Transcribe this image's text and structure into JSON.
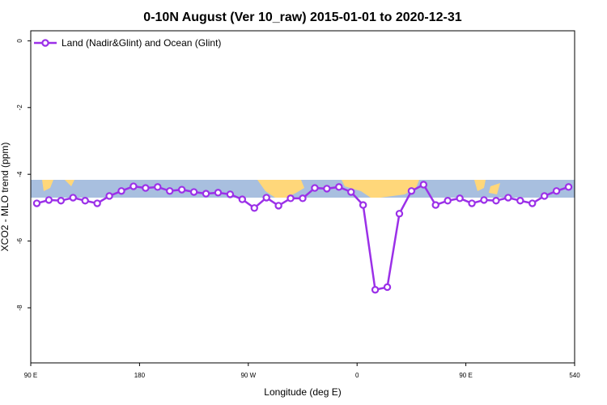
{
  "chart_data": {
    "type": "line",
    "title": "0-10N August (Ver 10_raw)   2015-01-01 to 2020-12-31",
    "x_label": "Longitude (deg E)",
    "y_label": "XCO2 - MLO trend (ppm)",
    "x": [
      95,
      105,
      115,
      125,
      135,
      145,
      155,
      165,
      175,
      185,
      195,
      205,
      215,
      225,
      235,
      245,
      255,
      265,
      275,
      285,
      295,
      305,
      315,
      325,
      335,
      345,
      355,
      365,
      375,
      385,
      395,
      405,
      415,
      425,
      435,
      445,
      455,
      465,
      475,
      485,
      495,
      505,
      515,
      525,
      535
    ],
    "series": [
      {
        "name": "Land (Nadir&Glint) and Ocean (Glint)",
        "color": "#9b30e8",
        "values": [
          -4.87,
          -4.77,
          -4.79,
          -4.7,
          -4.79,
          -4.87,
          -4.65,
          -4.5,
          -4.36,
          -4.41,
          -4.38,
          -4.5,
          -4.46,
          -4.53,
          -4.58,
          -4.55,
          -4.6,
          -4.75,
          -5.01,
          -4.7,
          -4.94,
          -4.72,
          -4.72,
          -4.41,
          -4.43,
          -4.38,
          -4.53,
          -4.92,
          -7.46,
          -7.38,
          -5.18,
          -4.5,
          -4.31,
          -4.92,
          -4.79,
          -4.72,
          -4.87,
          -4.77,
          -4.79,
          -4.7,
          -4.79,
          -4.87,
          -4.65,
          -4.5,
          -4.38
        ]
      }
    ],
    "xlim": [
      90,
      540
    ],
    "xticks": [
      {
        "value": 90,
        "label": "90 E"
      },
      180,
      {
        "value": 270,
        "label": "90 W"
      },
      {
        "value": 360,
        "label": "0"
      },
      {
        "value": 450,
        "label": "90 E"
      },
      540
    ],
    "ylim": [
      -9.65,
      0.3
    ],
    "yticks": [
      0,
      -2,
      -4,
      -6,
      -8
    ],
    "legend": "top-left"
  }
}
